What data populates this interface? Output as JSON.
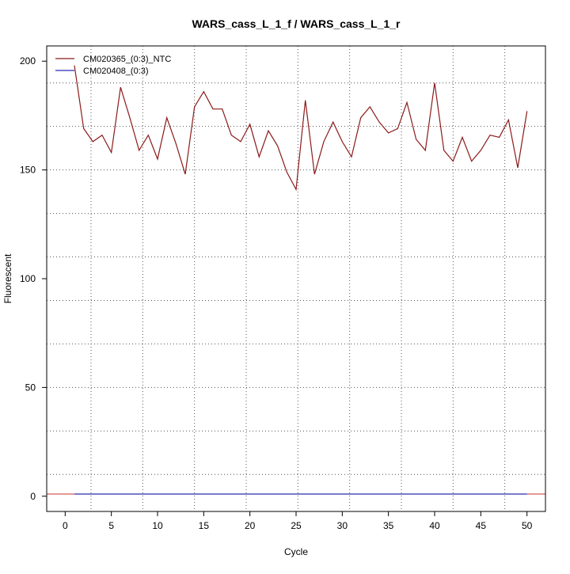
{
  "chart_data": {
    "type": "line",
    "title": "WARS_cass_L_1_f / WARS_cass_L_1_r",
    "xlabel": "Cycle",
    "ylabel": "Fluorescent",
    "xlim": [
      -2,
      52
    ],
    "ylim": [
      -7,
      207
    ],
    "xticks": [
      0,
      5,
      10,
      15,
      20,
      25,
      30,
      35,
      40,
      45,
      50
    ],
    "yticks": [
      0,
      50,
      100,
      150,
      200
    ],
    "grid": true,
    "legend_position": "top-left",
    "series": [
      {
        "name": "CM020365_(0:3)_NTC",
        "color": "#8b1a1a",
        "x": [
          1,
          2,
          3,
          4,
          5,
          6,
          7,
          8,
          9,
          10,
          11,
          12,
          13,
          14,
          15,
          16,
          17,
          18,
          19,
          20,
          21,
          22,
          23,
          24,
          25,
          26,
          27,
          28,
          29,
          30,
          31,
          32,
          33,
          34,
          35,
          36,
          37,
          38,
          39,
          40,
          41,
          42,
          43,
          44,
          45,
          46,
          47,
          48,
          49,
          50
        ],
        "y": [
          198,
          169,
          163,
          166,
          158,
          188,
          174,
          159,
          166,
          155,
          174,
          162,
          148,
          179,
          186,
          178,
          178,
          166,
          163,
          171,
          156,
          168,
          161,
          149,
          141,
          182,
          148,
          163,
          172,
          163,
          156,
          174,
          179,
          172,
          167,
          169,
          181,
          164,
          159,
          190,
          159,
          154,
          165,
          154,
          159,
          166,
          165,
          173,
          151,
          177
        ]
      },
      {
        "name": "CM020408_(0:3)",
        "color": "#2b2bb0",
        "x": [
          1,
          50
        ],
        "y": [
          1,
          1
        ]
      }
    ],
    "horizontal_line": {
      "y": 1,
      "color": "#c83232"
    }
  }
}
